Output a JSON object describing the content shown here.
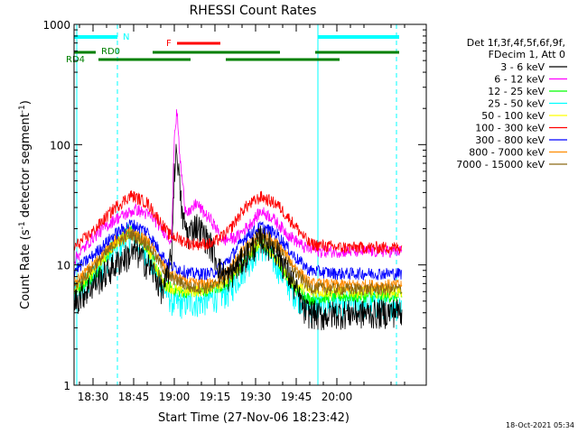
{
  "chart_data": {
    "type": "line",
    "title": "RHESSI Count Rates",
    "xlabel": "Start Time (27-Nov-06 18:23:42)",
    "ylabel": "Count Rate (s⁻¹ detector segment⁻¹)",
    "ylabel_parts": [
      "Count Rate (s",
      "-1",
      " detector segment",
      "-1",
      ")"
    ],
    "y_scale": "log",
    "ylim": [
      1,
      1000
    ],
    "xlim_minutes": [
      -7,
      123
    ],
    "x_unit_note": "",
    "x_tick_labels": [
      "18:30",
      "18:45",
      "19:00",
      "19:15",
      "19:30",
      "19:45",
      "20:00"
    ],
    "x_tick_minutes": [
      0,
      15,
      30,
      45,
      60,
      75,
      90
    ],
    "y_tick_labels": [
      "1",
      "10",
      "100",
      "1000"
    ],
    "y_tick_values": [
      1,
      10,
      100,
      1000
    ],
    "legend_position": "right",
    "legend_header": [
      "Det 1f,3f,4f,5f,6f,9f,",
      "FDecim 1, Att 0"
    ],
    "series": [
      {
        "name": "3 - 6 keV",
        "color": "#000000",
        "points": [
          [
            -7,
            5
          ],
          [
            10,
            11
          ],
          [
            16,
            13
          ],
          [
            22,
            9
          ],
          [
            26,
            6
          ],
          [
            29,
            12
          ],
          [
            30,
            60
          ],
          [
            31,
            95
          ],
          [
            32,
            45
          ],
          [
            33,
            25
          ],
          [
            35,
            18
          ],
          [
            38,
            22
          ],
          [
            41,
            18
          ],
          [
            44,
            14
          ],
          [
            47,
            9
          ],
          [
            50,
            8
          ],
          [
            55,
            11
          ],
          [
            62,
            17
          ],
          [
            68,
            13
          ],
          [
            74,
            7
          ],
          [
            78,
            4.2
          ],
          [
            84,
            3.8
          ],
          [
            90,
            4
          ],
          [
            105,
            4
          ],
          [
            114,
            4.2
          ]
        ]
      },
      {
        "name": "6 - 12 keV",
        "color": "#ff00ff",
        "points": [
          [
            -7,
            11
          ],
          [
            0,
            17
          ],
          [
            8,
            24
          ],
          [
            16,
            29
          ],
          [
            22,
            25
          ],
          [
            28,
            17
          ],
          [
            29,
            16
          ],
          [
            30,
            120
          ],
          [
            31,
            190
          ],
          [
            32,
            80
          ],
          [
            34,
            30
          ],
          [
            36,
            27
          ],
          [
            38,
            33
          ],
          [
            41,
            27
          ],
          [
            44,
            23
          ],
          [
            48,
            16
          ],
          [
            53,
            17
          ],
          [
            58,
            22
          ],
          [
            62,
            28
          ],
          [
            66,
            25
          ],
          [
            72,
            18
          ],
          [
            78,
            14
          ],
          [
            84,
            13
          ],
          [
            90,
            13
          ],
          [
            105,
            13
          ],
          [
            114,
            13
          ]
        ]
      },
      {
        "name": "12 - 25 keV",
        "color": "#00ff00",
        "points": [
          [
            -7,
            6
          ],
          [
            0,
            8
          ],
          [
            8,
            15
          ],
          [
            14,
            20
          ],
          [
            20,
            14
          ],
          [
            26,
            7
          ],
          [
            32,
            6
          ],
          [
            40,
            6
          ],
          [
            50,
            7
          ],
          [
            55,
            10
          ],
          [
            62,
            16
          ],
          [
            68,
            11
          ],
          [
            74,
            6.5
          ],
          [
            80,
            5.2
          ],
          [
            90,
            5.5
          ],
          [
            105,
            5.5
          ],
          [
            114,
            5.5
          ]
        ]
      },
      {
        "name": "25 - 50 keV",
        "color": "#00ffff",
        "points": [
          [
            -7,
            5.5
          ],
          [
            0,
            8
          ],
          [
            8,
            14
          ],
          [
            14,
            18
          ],
          [
            20,
            13
          ],
          [
            26,
            6.5
          ],
          [
            30,
            4.8
          ],
          [
            40,
            5
          ],
          [
            50,
            6
          ],
          [
            55,
            9
          ],
          [
            62,
            15
          ],
          [
            68,
            10
          ],
          [
            74,
            6
          ],
          [
            80,
            4.5
          ],
          [
            90,
            4.8
          ],
          [
            105,
            4.8
          ],
          [
            114,
            4.8
          ]
        ]
      },
      {
        "name": "50 - 100 keV",
        "color": "#ffff00",
        "points": [
          [
            -7,
            6
          ],
          [
            0,
            9
          ],
          [
            8,
            15
          ],
          [
            14,
            19
          ],
          [
            20,
            14
          ],
          [
            26,
            7
          ],
          [
            32,
            6
          ],
          [
            40,
            6.2
          ],
          [
            50,
            7.5
          ],
          [
            55,
            10
          ],
          [
            62,
            16
          ],
          [
            68,
            11
          ],
          [
            74,
            7
          ],
          [
            80,
            6
          ],
          [
            90,
            6
          ],
          [
            105,
            6
          ],
          [
            114,
            6
          ]
        ]
      },
      {
        "name": "100 - 300 keV",
        "color": "#ff0000",
        "points": [
          [
            -7,
            14
          ],
          [
            0,
            19
          ],
          [
            8,
            30
          ],
          [
            14,
            38
          ],
          [
            20,
            33
          ],
          [
            28,
            18
          ],
          [
            36,
            15
          ],
          [
            44,
            15
          ],
          [
            50,
            19
          ],
          [
            56,
            30
          ],
          [
            62,
            37
          ],
          [
            68,
            32
          ],
          [
            74,
            22
          ],
          [
            80,
            15
          ],
          [
            90,
            14
          ],
          [
            105,
            14
          ],
          [
            114,
            14
          ]
        ]
      },
      {
        "name": "300 - 800 keV",
        "color": "#0000ff",
        "points": [
          [
            -7,
            9
          ],
          [
            0,
            12
          ],
          [
            8,
            18
          ],
          [
            14,
            22
          ],
          [
            20,
            19
          ],
          [
            28,
            10
          ],
          [
            36,
            8.5
          ],
          [
            44,
            8.5
          ],
          [
            50,
            11
          ],
          [
            56,
            17
          ],
          [
            62,
            21
          ],
          [
            68,
            18
          ],
          [
            74,
            12
          ],
          [
            80,
            9
          ],
          [
            90,
            8.5
          ],
          [
            105,
            8.5
          ],
          [
            114,
            8.5
          ]
        ]
      },
      {
        "name": "800 - 7000 keV",
        "color": "#ff8c00",
        "points": [
          [
            -7,
            7
          ],
          [
            0,
            10
          ],
          [
            8,
            16
          ],
          [
            14,
            19
          ],
          [
            20,
            16
          ],
          [
            28,
            8.5
          ],
          [
            36,
            7
          ],
          [
            44,
            7
          ],
          [
            50,
            9
          ],
          [
            56,
            14
          ],
          [
            62,
            18
          ],
          [
            68,
            15
          ],
          [
            74,
            10
          ],
          [
            80,
            7
          ],
          [
            90,
            6.8
          ],
          [
            105,
            6.8
          ],
          [
            114,
            6.8
          ]
        ]
      },
      {
        "name": "7000 - 15000 keV",
        "color": "#8b6914",
        "points": [
          [
            -7,
            6.5
          ],
          [
            0,
            9.5
          ],
          [
            8,
            15
          ],
          [
            14,
            18
          ],
          [
            20,
            15
          ],
          [
            28,
            8
          ],
          [
            36,
            6.5
          ],
          [
            44,
            6.5
          ],
          [
            50,
            8.5
          ],
          [
            56,
            13
          ],
          [
            62,
            17
          ],
          [
            68,
            14
          ],
          [
            74,
            9
          ],
          [
            80,
            6.5
          ],
          [
            90,
            6.3
          ],
          [
            105,
            6.3
          ],
          [
            114,
            6.3
          ]
        ]
      }
    ],
    "annotations": {
      "N_label": "N",
      "F_label": "F",
      "RD0_label": "RD0",
      "RD4_label": "RD4"
    },
    "flag_bars": {
      "night": {
        "color": "#00ffff",
        "ranges": [
          [
            -7,
            9
          ],
          [
            83,
            113
          ]
        ]
      },
      "flare": {
        "color": "#ff0000",
        "ranges": [
          [
            31,
            47
          ]
        ]
      },
      "rd0": {
        "color": "#008000",
        "ranges": [
          [
            -7,
            1
          ],
          [
            22,
            69
          ],
          [
            82,
            113
          ]
        ]
      },
      "rd4": {
        "color": "#008000",
        "ranges": [
          [
            2,
            36
          ],
          [
            49,
            91
          ]
        ]
      }
    },
    "vertical_lines": {
      "color": "#00ffff",
      "solid_minutes": [
        -6,
        83
      ],
      "dashed_minutes": [
        9,
        112
      ]
    }
  },
  "footer": {
    "timestamp": "18-Oct-2021 05:34"
  }
}
